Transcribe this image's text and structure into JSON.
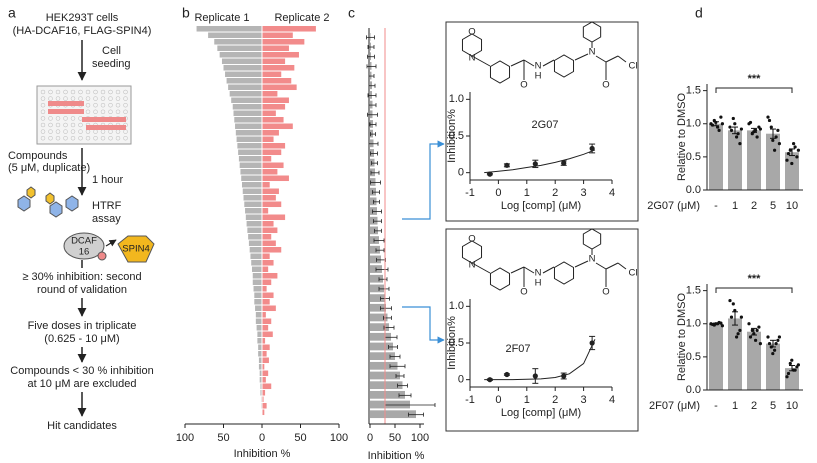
{
  "flowchart": {
    "label": "a",
    "lines": [
      "HEK293T cells",
      "(HA-DCAF16, FLAG-SPIN4)",
      "Cell",
      "seeding",
      "Compounds",
      "(5 μM, duplicate)",
      "1 hour",
      "HTRF",
      "assay",
      "DCAF",
      "16",
      "SPIN4",
      "≥ 30% inhibition: second",
      "round of validation",
      "Five doses in triplicate",
      "(0.625 - 10 μM)",
      "Compounds < 30 % inhibition",
      "at 10 μM are excluded",
      "Hit candidates"
    ]
  },
  "chart_data": [
    {
      "type": "mirrored_bar",
      "panel": "b",
      "xlabel": "Inhibition %",
      "xlim": [
        0,
        100
      ],
      "xticks_left": [
        100,
        50
      ],
      "xticks_right": [
        0,
        50,
        100
      ],
      "series": [
        {
          "name": "Replicate 1",
          "color": "#b5b5b5",
          "values": [
            85,
            70,
            62,
            58,
            55,
            52,
            50,
            48,
            46,
            44,
            42,
            40,
            38,
            37,
            36,
            35,
            34,
            33,
            32,
            31,
            30,
            29,
            28,
            27,
            26,
            25,
            24,
            23,
            22,
            21,
            20,
            19,
            18,
            17,
            16,
            15,
            14,
            13,
            12,
            12,
            11,
            10,
            10,
            9,
            8,
            8,
            7,
            6,
            6,
            5,
            5,
            4,
            4,
            3,
            3,
            2,
            2,
            1,
            1,
            0
          ]
        },
        {
          "name": "Replicate 2",
          "color": "#f28b8b",
          "values": [
            70,
            40,
            55,
            35,
            48,
            30,
            42,
            25,
            38,
            45,
            20,
            35,
            30,
            18,
            28,
            40,
            22,
            15,
            30,
            25,
            12,
            28,
            20,
            35,
            10,
            22,
            18,
            25,
            8,
            30,
            15,
            20,
            12,
            18,
            25,
            10,
            15,
            8,
            20,
            12,
            6,
            15,
            10,
            18,
            5,
            12,
            8,
            14,
            4,
            10,
            6,
            9,
            3,
            8,
            5,
            12,
            4,
            2,
            6,
            3
          ]
        }
      ]
    },
    {
      "type": "hbar",
      "panel": "c",
      "xlabel": "Inhibition %",
      "xlim": [
        0,
        100
      ],
      "xticks": [
        0,
        50,
        100
      ],
      "color": "#a8a8a8",
      "threshold": 30,
      "threshold_color": "#f28b8b",
      "values": [
        1,
        2,
        2,
        3,
        3,
        4,
        4,
        5,
        5,
        6,
        6,
        7,
        8,
        9,
        10,
        11,
        12,
        13,
        14,
        15,
        16,
        18,
        20,
        22,
        24,
        26,
        28,
        30,
        32,
        35,
        38,
        42,
        46,
        50,
        55,
        60,
        65,
        70,
        80,
        92
      ],
      "errors": [
        8,
        6,
        7,
        9,
        5,
        6,
        8,
        7,
        10,
        6,
        5,
        9,
        7,
        6,
        8,
        10,
        7,
        6,
        9,
        8,
        7,
        10,
        8,
        9,
        12,
        8,
        10,
        9,
        11,
        8,
        10,
        12,
        9,
        10,
        15,
        8,
        10,
        12,
        50,
        15
      ]
    },
    {
      "type": "dose_response",
      "title": "2G07",
      "structure_atoms": [
        "O",
        "N",
        "O",
        "N",
        "H",
        "N",
        "O",
        "Cl"
      ],
      "xlabel": "Log [comp] (μM)",
      "ylabel": "Inhibition%",
      "xlim": [
        -1,
        4
      ],
      "xticks": [
        -1,
        0,
        1,
        2,
        3,
        4
      ],
      "ylim": [
        -0.1,
        1.1
      ],
      "yticks": [
        0,
        0.5,
        {
          "value": 1,
          "label": "1.0"
        }
      ],
      "x": [
        -0.3,
        0.3,
        1.3,
        2.3,
        3.3
      ],
      "values": [
        -0.02,
        0.1,
        0.12,
        0.13,
        0.33
      ],
      "errors": [
        0.01,
        0.02,
        0.05,
        0.03,
        0.06
      ],
      "fit_x": [
        -0.5,
        0,
        0.5,
        1,
        1.5,
        2,
        2.5,
        3,
        3.4
      ],
      "fit_y": [
        0,
        0.02,
        0.04,
        0.07,
        0.1,
        0.14,
        0.19,
        0.25,
        0.31
      ]
    },
    {
      "type": "dose_response",
      "title": "2F07",
      "structure_atoms": [
        "O",
        "N",
        "O",
        "N",
        "H",
        "N",
        "O",
        "Cl"
      ],
      "xlabel": "Log [comp] (μM)",
      "ylabel": "Inhibition%",
      "xlim": [
        -1,
        4
      ],
      "xticks": [
        -1,
        0,
        1,
        2,
        3,
        4
      ],
      "ylim": [
        -0.1,
        1.1
      ],
      "yticks": [
        0,
        0.5,
        {
          "value": 1,
          "label": "1.0"
        }
      ],
      "x": [
        -0.3,
        0.3,
        1.3,
        2.3,
        3.3
      ],
      "values": [
        0,
        0.07,
        0.05,
        0.05,
        0.5
      ],
      "errors": [
        0.01,
        0.01,
        0.1,
        0.04,
        0.09
      ],
      "fit_x": [
        -0.5,
        0,
        0.5,
        1,
        1.5,
        2,
        2.5,
        3,
        3.4
      ],
      "fit_y": [
        0,
        0,
        0,
        0.005,
        0.01,
        0.03,
        0.08,
        0.22,
        0.55
      ]
    },
    {
      "type": "bar_points",
      "panel": "d",
      "categories": [
        "-",
        "1",
        "2",
        "5",
        "10"
      ],
      "xlabel": "2G07 (μM)",
      "ylabel": "Relative to DMSO",
      "annotation": "***",
      "color": "#a8a8a8",
      "ylim": [
        0,
        1.6
      ],
      "yticks": [
        {
          "value": 0,
          "label": "0.0"
        },
        0.5,
        {
          "value": 1,
          "label": "1.0"
        },
        1.5
      ],
      "values": [
        1.0,
        0.9,
        0.9,
        0.85,
        0.57
      ],
      "errors": [
        0.03,
        0.05,
        0.03,
        0.07,
        0.05
      ],
      "points": [
        [
          1.0,
          1.05,
          0.95,
          1.1,
          0.98,
          1.02,
          0.9,
          1.0
        ],
        [
          0.95,
          1.08,
          0.8,
          0.7,
          0.9,
          1.0,
          0.85,
          0.92
        ],
        [
          1.0,
          0.85,
          0.9,
          0.95,
          1.02,
          0.88,
          0.8,
          0.92
        ],
        [
          1.1,
          0.95,
          0.6,
          0.9,
          1.05,
          0.75,
          0.8,
          0.7
        ],
        [
          0.45,
          0.6,
          0.7,
          0.5,
          0.55,
          0.4,
          0.65,
          0.6
        ]
      ]
    },
    {
      "type": "bar_points",
      "categories": [
        "-",
        "1",
        "2",
        "5",
        "10"
      ],
      "xlabel": "2F07 (μM)",
      "ylabel": "Relative to DMSO",
      "annotation": "***",
      "color": "#a8a8a8",
      "ylim": [
        0,
        1.6
      ],
      "yticks": [
        {
          "value": 0,
          "label": "0.0"
        },
        0.5,
        {
          "value": 1,
          "label": "1.0"
        },
        1.5
      ],
      "values": [
        1.0,
        1.08,
        0.88,
        0.7,
        0.33
      ],
      "errors": [
        0.01,
        0.1,
        0.05,
        0.05,
        0.04
      ],
      "points": [
        [
          1.0,
          0.98,
          1.0,
          1.01,
          0.99,
          1.0,
          1.02,
          0.97
        ],
        [
          1.35,
          1.3,
          0.8,
          0.9,
          1.1,
          1.2,
          0.85,
          1.1
        ],
        [
          1.0,
          0.9,
          0.75,
          0.95,
          0.8,
          0.85,
          0.9,
          0.7
        ],
        [
          0.8,
          0.65,
          0.6,
          0.75,
          0.7,
          0.55,
          0.7,
          0.8
        ],
        [
          0.2,
          0.4,
          0.3,
          0.35,
          0.25,
          0.45,
          0.3,
          0.38
        ]
      ]
    }
  ]
}
